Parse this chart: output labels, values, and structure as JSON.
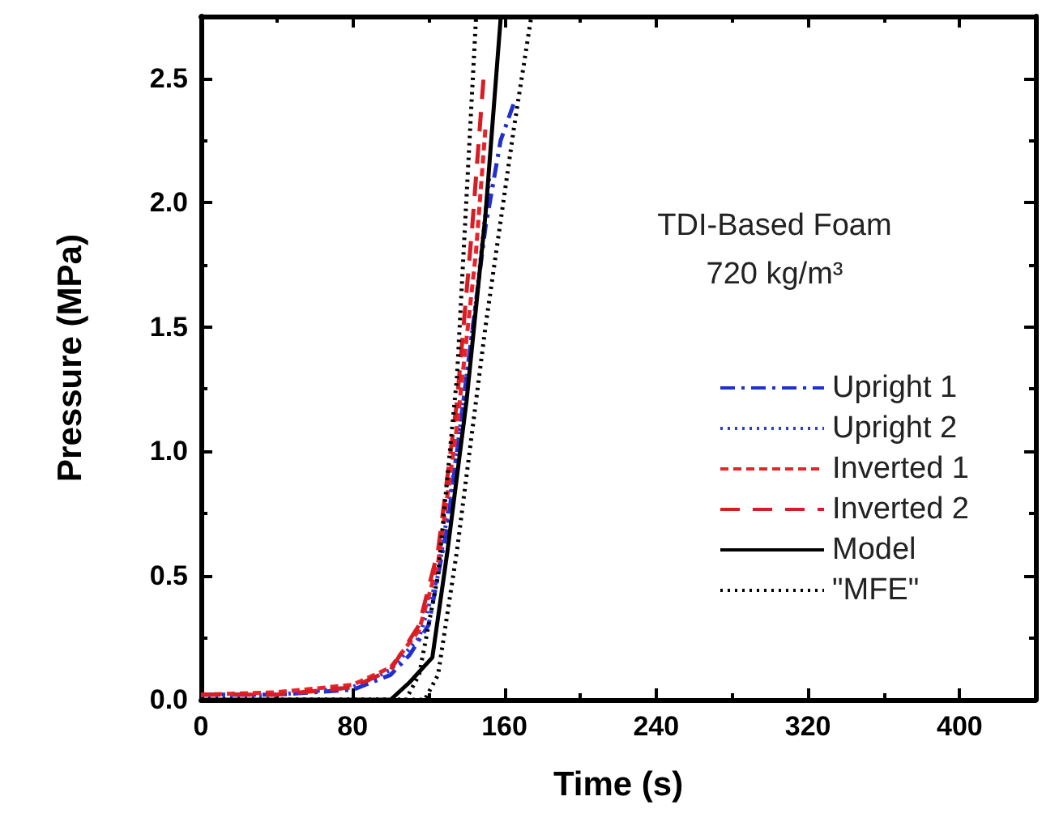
{
  "chart_data": {
    "type": "line",
    "xlabel": "Time (s)",
    "ylabel": "Pressure (MPa)",
    "annotations": [
      "TDI-Based Foam",
      "720 kg/m³"
    ],
    "xlim": [
      0,
      440
    ],
    "xticks": [
      0,
      80,
      160,
      240,
      320,
      400
    ],
    "ylim": [
      0,
      2.75
    ],
    "yticks": [
      {
        "value": 0,
        "label": "0.0"
      },
      0.5,
      {
        "value": 1,
        "label": "1.0"
      },
      1.5,
      {
        "value": 2,
        "label": "2.0"
      },
      2.5
    ],
    "grid": false,
    "legend": "right",
    "marker": "none",
    "series": [
      {
        "name": "Upright 1",
        "color": "#1f2fd0",
        "line_style": "dashdot",
        "x": [
          0,
          40,
          80,
          100,
          110,
          120,
          130,
          140,
          150,
          158,
          165
        ],
        "values": [
          0.02,
          0.02,
          0.04,
          0.1,
          0.18,
          0.3,
          0.7,
          1.3,
          1.9,
          2.25,
          2.4
        ]
      },
      {
        "name": "Upright 2",
        "color": "#2a3ae0",
        "line_style": "dotted",
        "x": [
          0,
          40,
          80,
          100,
          115,
          125,
          135,
          145,
          152
        ],
        "values": [
          0.01,
          0.02,
          0.05,
          0.12,
          0.25,
          0.5,
          1.0,
          1.6,
          2.1
        ]
      },
      {
        "name": "Inverted 1",
        "color": "#e8242a",
        "line_style": "dashed",
        "x": [
          0,
          40,
          80,
          100,
          115,
          125,
          135,
          145,
          150
        ],
        "values": [
          0.02,
          0.03,
          0.06,
          0.13,
          0.28,
          0.55,
          1.1,
          1.8,
          2.3
        ]
      },
      {
        "name": "Inverted 2",
        "color": "#d81c24",
        "line_style": "longdash",
        "x": [
          0,
          40,
          80,
          100,
          115,
          125,
          135,
          143,
          149
        ],
        "values": [
          0.02,
          0.02,
          0.05,
          0.12,
          0.3,
          0.6,
          1.2,
          1.9,
          2.5
        ]
      },
      {
        "name": "Model",
        "color": "#000000",
        "line_style": "solid",
        "x": [
          0,
          100,
          110,
          122,
          130,
          140,
          150,
          158
        ],
        "values": [
          0,
          0,
          0.07,
          0.17,
          0.6,
          1.2,
          1.95,
          2.74
        ]
      },
      {
        "name": "\"MFE\"",
        "color": "#000000",
        "line_style": "dotted",
        "x": [
          0,
          108,
          115,
          125,
          135,
          145
        ],
        "values": [
          0,
          0,
          0.1,
          0.5,
          1.3,
          2.74
        ]
      },
      {
        "color": "#000000",
        "line_style": "dotted",
        "x": [
          0,
          118,
          125,
          135,
          150,
          165,
          174
        ],
        "values": [
          0,
          0,
          0.1,
          0.6,
          1.5,
          2.3,
          2.74
        ]
      }
    ]
  }
}
